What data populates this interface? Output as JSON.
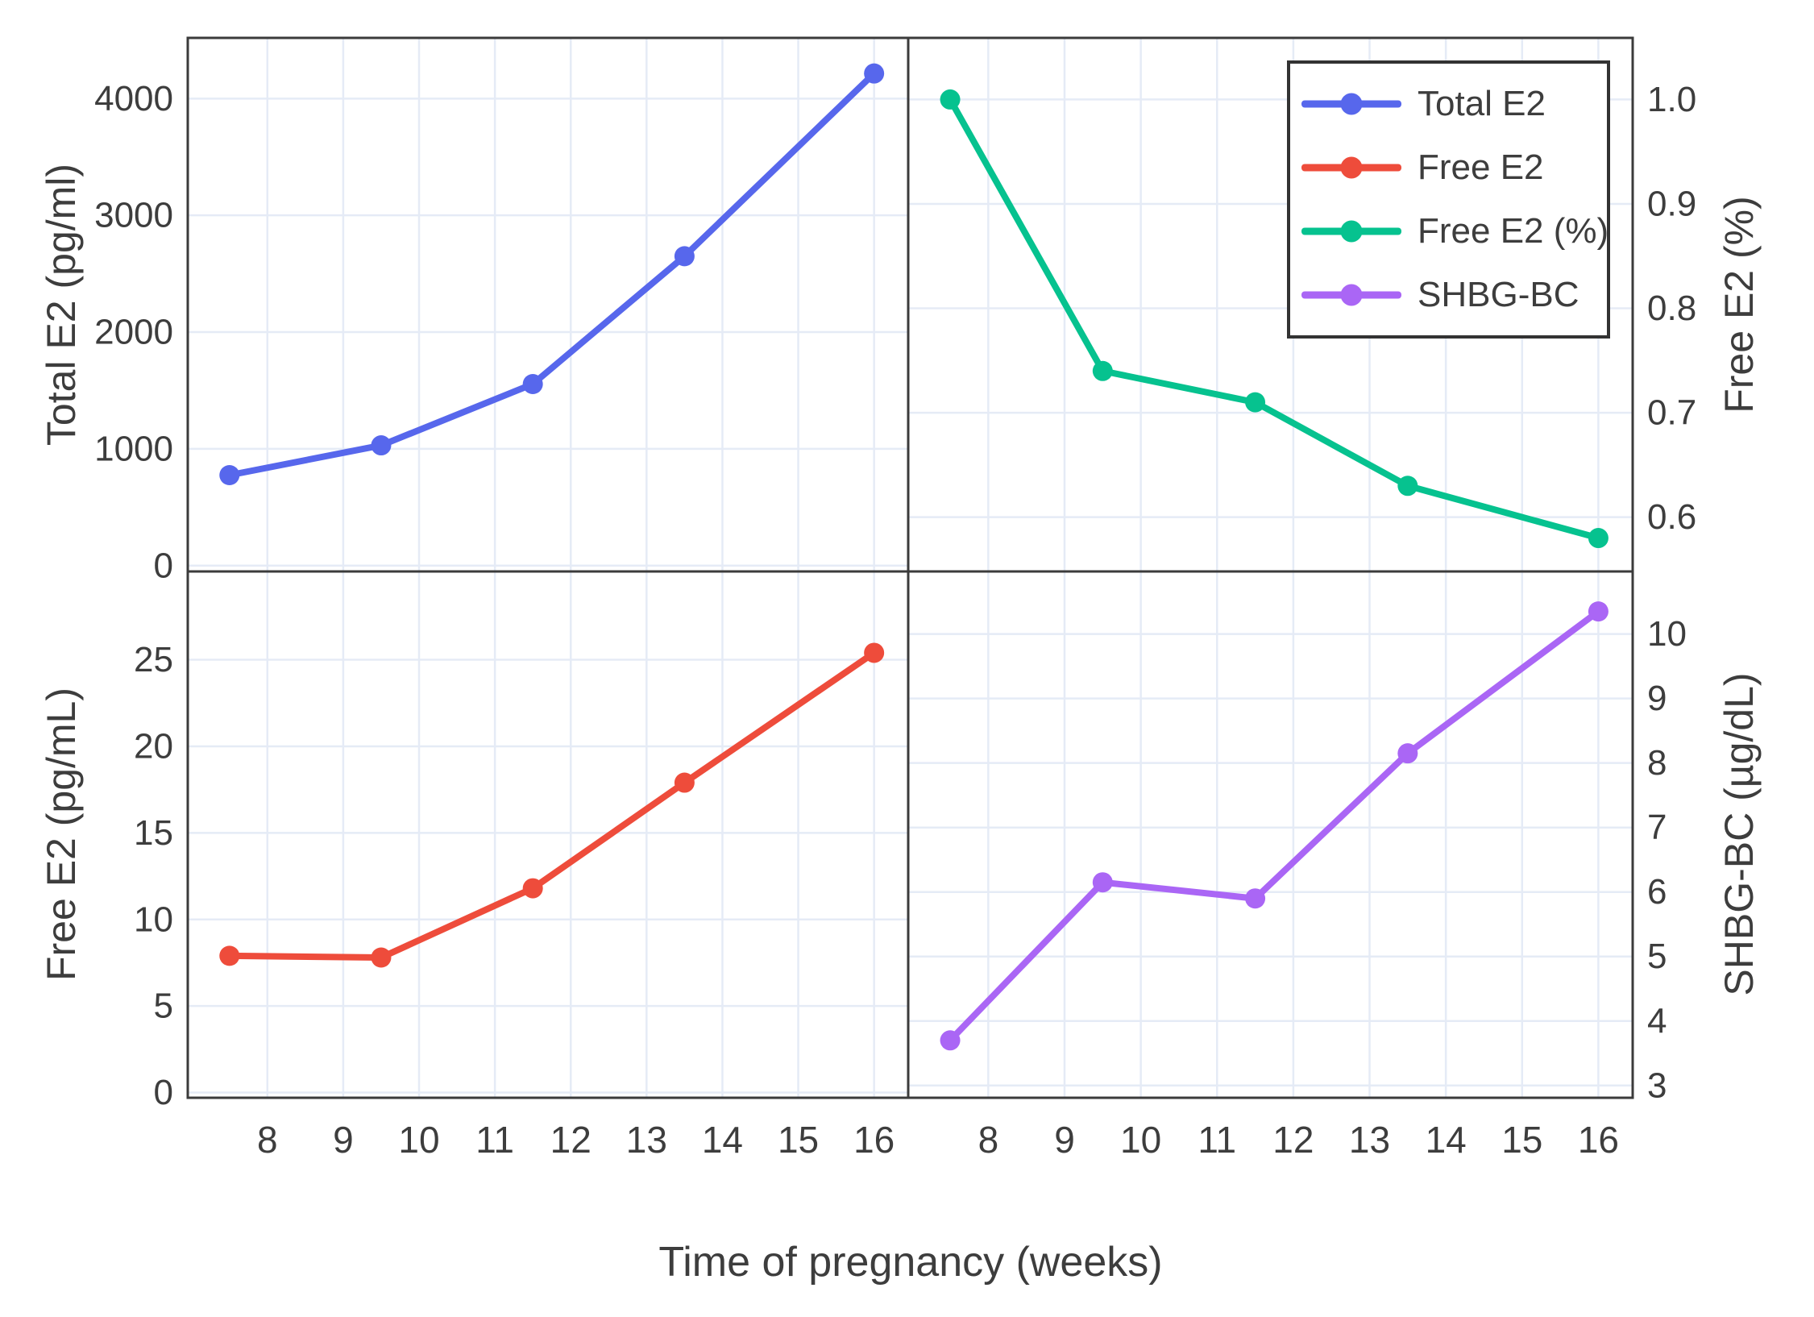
{
  "figure": {
    "background": "#ffffff",
    "grid_color": "#e5ebf6",
    "spine_color": "#3b3b3b",
    "text_color": "#3d3d3d",
    "x_axis": {
      "label": "Time of pregnancy (weeks)",
      "range": [
        6.95,
        16.45
      ],
      "ticks": [
        8,
        9,
        10,
        11,
        12,
        13,
        14,
        15,
        16
      ],
      "tick_labels": [
        "8",
        "9",
        "10",
        "11",
        "12",
        "13",
        "14",
        "15",
        "16"
      ]
    }
  },
  "legend": {
    "position": "top-right-subplot",
    "entries": [
      {
        "label": "Total E2",
        "color": "#5767ec"
      },
      {
        "label": "Free E2",
        "color": "#ee4c3b"
      },
      {
        "label": "Free E2 (%)",
        "color": "#06c28f"
      },
      {
        "label": "SHBG-BC",
        "color": "#aa66f5"
      }
    ]
  },
  "chart_data": [
    {
      "type": "line",
      "name": "Total E2",
      "position": "top-left",
      "color": "#5767ec",
      "ylabel": "Total E2 (pg/ml)",
      "ylabel_side": "left",
      "x": [
        7.5,
        9.5,
        11.5,
        13.5,
        16
      ],
      "y": [
        775,
        1030,
        1555,
        2650,
        4215
      ],
      "ylim": [
        -50,
        4520
      ],
      "yticks": [
        0,
        1000,
        2000,
        3000,
        4000
      ],
      "ytick_labels": [
        "0",
        "1000",
        "2000",
        "3000",
        "4000"
      ],
      "ytick_side": "left",
      "show_xtick_labels": false,
      "grid": true
    },
    {
      "type": "line",
      "name": "Free E2 (%)",
      "position": "top-right",
      "color": "#06c28f",
      "ylabel": "Free E2 (%)",
      "ylabel_side": "right",
      "x": [
        7.5,
        9.5,
        11.5,
        13.5,
        16
      ],
      "y": [
        1.0,
        0.74,
        0.71,
        0.63,
        0.58
      ],
      "ylim": [
        0.548,
        1.059
      ],
      "yticks": [
        0.6,
        0.7,
        0.8,
        0.9,
        1.0
      ],
      "ytick_labels": [
        "0.6",
        "0.7",
        "0.8",
        "0.9",
        "1.0"
      ],
      "ytick_side": "right",
      "show_xtick_labels": false,
      "grid": true
    },
    {
      "type": "line",
      "name": "Free E2",
      "position": "bottom-left",
      "color": "#ee4c3b",
      "ylabel": "Free E2 (pg/mL)",
      "ylabel_side": "left",
      "x": [
        7.5,
        9.5,
        11.5,
        13.5,
        16
      ],
      "y": [
        7.9,
        7.8,
        11.8,
        17.9,
        25.4
      ],
      "ylim": [
        -0.3,
        30.1
      ],
      "yticks": [
        0,
        5,
        10,
        15,
        20,
        25
      ],
      "ytick_labels": [
        "0",
        "5",
        "10",
        "15",
        "20",
        "25"
      ],
      "ytick_side": "left",
      "show_xtick_labels": true,
      "grid": true
    },
    {
      "type": "line",
      "name": "SHBG-BC",
      "position": "bottom-right",
      "color": "#aa66f5",
      "ylabel": "SHBG-BC (µg/dL)",
      "ylabel_side": "right",
      "x": [
        7.5,
        9.5,
        11.5,
        13.5,
        16
      ],
      "y": [
        3.7,
        6.15,
        5.9,
        8.15,
        10.35
      ],
      "ylim": [
        2.81,
        10.97
      ],
      "yticks": [
        3,
        4,
        5,
        6,
        7,
        8,
        9,
        10
      ],
      "ytick_labels": [
        "3",
        "4",
        "5",
        "6",
        "7",
        "8",
        "9",
        "10"
      ],
      "ytick_side": "right",
      "show_xtick_labels": true,
      "grid": true
    }
  ]
}
